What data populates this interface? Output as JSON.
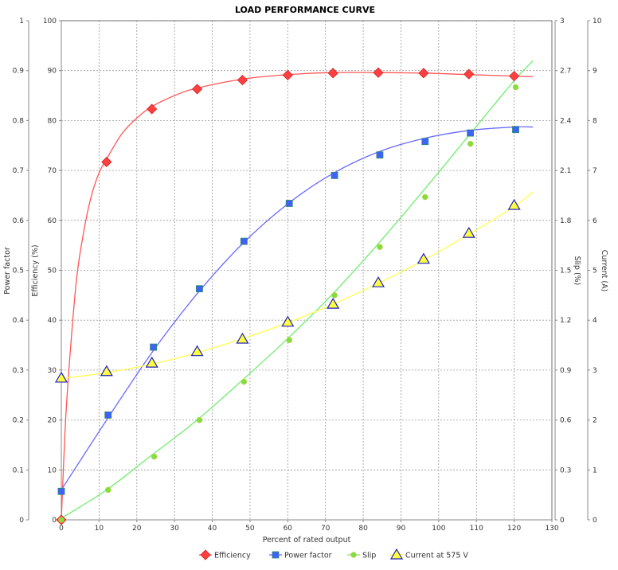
{
  "chart_data": {
    "type": "line",
    "title": "LOAD PERFORMANCE CURVE",
    "xlabel": "Percent of rated output",
    "xlim": [
      0,
      130
    ],
    "xticks": [
      0,
      10,
      20,
      30,
      40,
      50,
      60,
      70,
      80,
      90,
      100,
      110,
      120,
      130
    ],
    "grid": true,
    "legend_position": "bottom",
    "axes": {
      "pf": {
        "label": "Power factor",
        "range": [
          0,
          1
        ],
        "ticks": [
          "0",
          "0.1",
          "0.2",
          "0.3",
          "0.4",
          "0.5",
          "0.6",
          "0.7",
          "0.8",
          "0.9",
          "1"
        ]
      },
      "eff": {
        "label": "Efficiency (%)",
        "range": [
          0,
          100
        ],
        "ticks": [
          "0",
          "10",
          "20",
          "30",
          "40",
          "50",
          "60",
          "70",
          "80",
          "90",
          "100"
        ]
      },
      "slip": {
        "label": "Slip (%)",
        "range": [
          0,
          3
        ],
        "ticks": [
          "0",
          "0.3",
          "0.6",
          "0.9",
          "1.2",
          "1.5",
          "1.8",
          "2.1",
          "2.4",
          "2.7",
          "3"
        ]
      },
      "cur": {
        "label": "Current (A)",
        "range": [
          0,
          10
        ],
        "ticks": [
          "0",
          "1",
          "2",
          "3",
          "4",
          "5",
          "6",
          "7",
          "8",
          "9",
          "10"
        ]
      }
    },
    "series": [
      {
        "name": "Efficiency",
        "axis": "eff",
        "color": "#ff4040",
        "line": "#ff5555",
        "marker": "diamond",
        "x": [
          0,
          12,
          24,
          36,
          48,
          60,
          72,
          84,
          96,
          108,
          120
        ],
        "y": [
          0,
          71.7,
          82.3,
          86.3,
          88.1,
          89.1,
          89.5,
          89.6,
          89.5,
          89.3,
          88.9
        ],
        "fit_x": [
          0,
          1,
          2,
          4,
          6,
          8,
          10,
          12,
          16,
          20,
          24,
          30,
          36,
          48,
          60,
          72,
          84,
          96,
          108,
          120,
          125
        ],
        "fit_y": [
          0,
          18,
          30,
          48,
          58,
          65,
          69.5,
          72.3,
          77.3,
          80.5,
          82.8,
          85,
          86.5,
          88.3,
          89.2,
          89.6,
          89.6,
          89.5,
          89.2,
          88.9,
          88.8
        ]
      },
      {
        "name": "Power factor",
        "axis": "pf",
        "color": "#4060ff",
        "line": "#6a6aff",
        "marker": "square",
        "x": [
          0,
          12.4,
          24.4,
          36.6,
          48.4,
          60.4,
          72.4,
          84.4,
          96.4,
          108.4,
          120.4
        ],
        "y": [
          0.057,
          0.21,
          0.346,
          0.463,
          0.558,
          0.634,
          0.69,
          0.731,
          0.758,
          0.775,
          0.782
        ],
        "fit_x": [
          0,
          12,
          24,
          36,
          48,
          60,
          72,
          84,
          96,
          108,
          120,
          125
        ],
        "fit_y": [
          0.06,
          0.2,
          0.335,
          0.453,
          0.553,
          0.633,
          0.694,
          0.737,
          0.764,
          0.78,
          0.787,
          0.787
        ]
      },
      {
        "name": "Slip",
        "axis": "slip",
        "color": "#80e040",
        "line": "#70ee70",
        "marker": "circle",
        "x": [
          0,
          12.4,
          24.6,
          36.6,
          48.4,
          60.4,
          72.4,
          84.4,
          96.4,
          108.4,
          120.4
        ],
        "y": [
          0,
          0.18,
          0.38,
          0.6,
          0.83,
          1.08,
          1.35,
          1.64,
          1.94,
          2.26,
          2.6
        ],
        "fit_x": [
          0,
          12,
          24,
          36,
          48,
          60,
          72,
          84,
          96,
          108,
          120,
          125
        ],
        "fit_y": [
          0.01,
          0.18,
          0.39,
          0.6,
          0.84,
          1.09,
          1.36,
          1.66,
          1.98,
          2.31,
          2.64,
          2.76
        ]
      },
      {
        "name": "Current at 575 V",
        "axis": "cur",
        "color": "#ffff40",
        "line": "#ffff50",
        "marker": "triangle",
        "x": [
          0,
          12,
          24,
          36,
          48,
          60,
          72,
          84,
          96,
          108,
          120
        ],
        "y": [
          2.84,
          2.97,
          3.14,
          3.37,
          3.62,
          3.96,
          4.32,
          4.75,
          5.22,
          5.74,
          6.3
        ],
        "fit_x": [
          0,
          12,
          24,
          36,
          48,
          60,
          72,
          84,
          96,
          108,
          120,
          125
        ],
        "fit_y": [
          2.83,
          2.95,
          3.12,
          3.35,
          3.63,
          3.95,
          4.32,
          4.74,
          5.2,
          5.72,
          6.28,
          6.57
        ]
      }
    ]
  }
}
